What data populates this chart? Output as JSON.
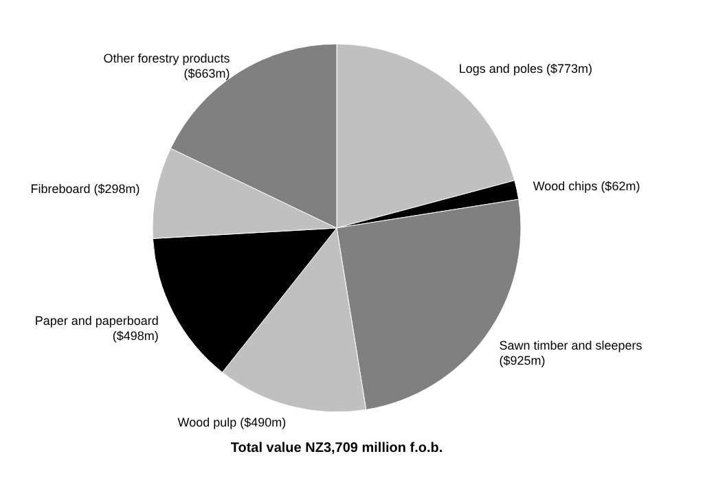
{
  "chart_data": {
    "type": "pie",
    "title": "Total value NZ3,709 million f.o.b.",
    "categories": [
      "Logs and poles",
      "Wood chips",
      "Sawn timber and sleepers",
      "Wood pulp",
      "Paper and paperboard",
      "Fibreboard",
      "Other forestry products"
    ],
    "values": [
      773,
      62,
      925,
      490,
      498,
      298,
      663
    ],
    "value_labels": [
      "($773m)",
      "($62m)",
      "($925m)",
      "($490m)",
      "($498m)",
      "($298m)",
      "($663m)"
    ],
    "colors": [
      "#c0c0c0",
      "#000000",
      "#808080",
      "#c0c0c0",
      "#000000",
      "#c0c0c0",
      "#808080"
    ]
  }
}
